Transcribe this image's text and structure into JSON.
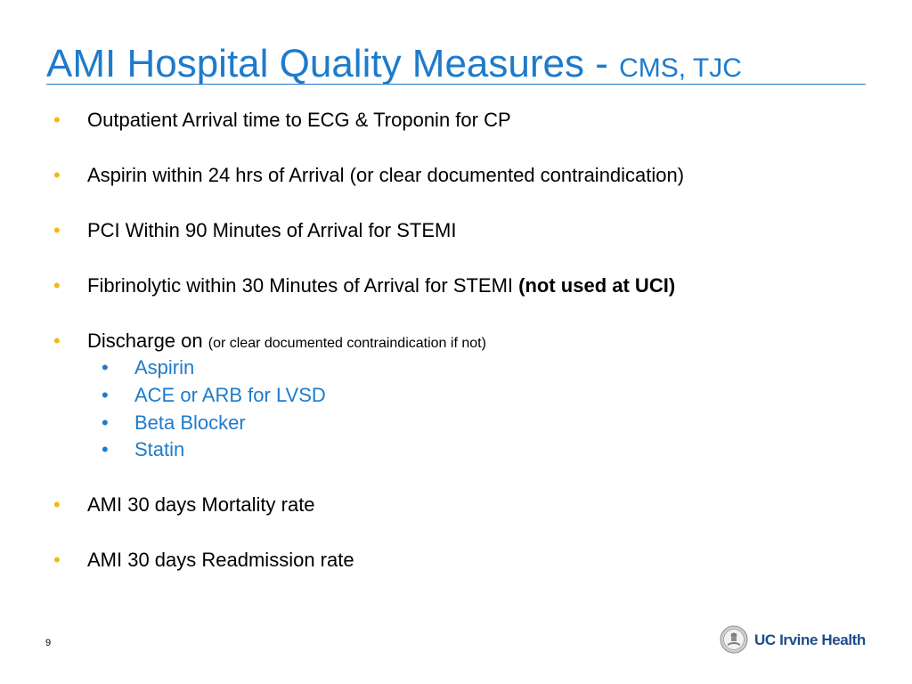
{
  "slide": {
    "title_main": "AMI Hospital Quality Measures - ",
    "title_sub": "CMS, TJC",
    "page_number": "9"
  },
  "bullets": [
    {
      "text": "Outpatient Arrival time to ECG & Troponin for CP"
    },
    {
      "text": "Aspirin within 24 hrs of Arrival (or clear documented contraindication)"
    },
    {
      "text": "PCI Within 90 Minutes of Arrival for STEMI"
    },
    {
      "text": "Fibrinolytic within 30 Minutes of Arrival for STEMI ",
      "emphasis": "(not used at UCI)"
    },
    {
      "text": "Discharge on ",
      "note": "(or clear documented contraindication if not)",
      "sub_items": [
        "Aspirin",
        "ACE or ARB for LVSD",
        "Beta Blocker",
        "Statin"
      ]
    },
    {
      "text": "AMI 30 days Mortality rate"
    },
    {
      "text": "AMI 30 days Readmission rate"
    }
  ],
  "logo": {
    "text": "UC Irvine Health",
    "icon": "university-seal-icon"
  },
  "colors": {
    "title": "#1E7BCB",
    "bullet_marker": "#F2B816",
    "sub_item_text": "#1E7BCB",
    "logo_text": "#1E4C8B"
  },
  "icons": {
    "bullet": "•"
  }
}
